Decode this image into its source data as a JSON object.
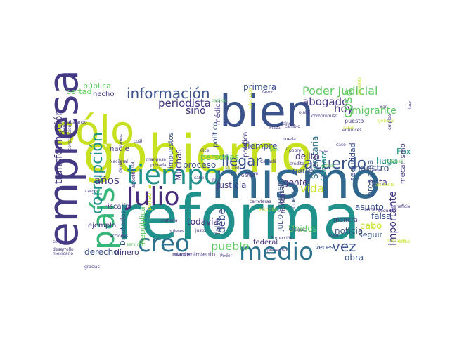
{
  "wordcloud": {
    "words": [
      {
        "text": "reforma",
        "color": "#21918c"
      },
      {
        "text": "gobierno",
        "color": "#c7e020"
      },
      {
        "text": "mismo",
        "color": "#31688e"
      },
      {
        "text": "bien",
        "color": "#3b528b"
      },
      {
        "text": "sólo",
        "color": "#c7e020"
      },
      {
        "text": "empresa",
        "color": "#443983"
      },
      {
        "text": "país",
        "color": "#35b779"
      },
      {
        "text": "tiempo",
        "color": "#21918c"
      },
      {
        "text": "Julio",
        "color": "#472d7b"
      },
      {
        "text": "creo",
        "color": "#2c728e"
      },
      {
        "text": "medio",
        "color": "#2c728e"
      },
      {
        "text": "acuerdo",
        "color": "#3b528b"
      },
      {
        "text": "información",
        "color": "#3b528b"
      },
      {
        "text": "Poder Judicial",
        "color": "#5ec962"
      },
      {
        "text": "periodista",
        "color": "#443983"
      },
      {
        "text": "corrupción",
        "color": "#21918c"
      },
      {
        "text": "años",
        "color": "#443983"
      },
      {
        "text": "pueblo",
        "color": "#5ec962"
      },
      {
        "text": "abogado",
        "color": "#443983"
      },
      {
        "text": "hoy",
        "color": "#443983"
      },
      {
        "text": "cosa",
        "color": "#5ec962"
      },
      {
        "text": "llegar",
        "color": "#3b528b"
      },
      {
        "text": "vez",
        "color": "#3b528b"
      },
      {
        "text": "importante",
        "color": "#443983"
      },
      {
        "text": "debe",
        "color": "#3b528b"
      },
      {
        "text": "Muchas",
        "color": "#443983"
      },
      {
        "text": "sino",
        "color": "#443983"
      },
      {
        "text": "migrante",
        "color": "#5ec962"
      },
      {
        "text": "Secretaría",
        "color": "#2c728e"
      },
      {
        "text": "seguridad",
        "color": "#3b528b"
      },
      {
        "text": "Cámara",
        "color": "#21918c"
      },
      {
        "text": "delito",
        "color": "#472d7b"
      },
      {
        "text": "gente",
        "color": "#472d7b"
      },
      {
        "text": "vida",
        "color": "#c7e020"
      },
      {
        "text": "maestro",
        "color": "#3b528b"
      },
      {
        "text": "justicia",
        "color": "#443983"
      },
      {
        "text": "todavía",
        "color": "#472d7b"
      },
      {
        "text": "personas",
        "color": "#5ec962"
      },
      {
        "text": "proceso",
        "color": "#3b528b"
      },
      {
        "text": "siempre",
        "color": "#3b528b"
      },
      {
        "text": "primera",
        "color": "#3b528b"
      },
      {
        "text": "ejemplo",
        "color": "#443983"
      },
      {
        "text": "hecho",
        "color": "#443983"
      },
      {
        "text": "derecho",
        "color": "#3b528b"
      },
      {
        "text": "dinero",
        "color": "#443983"
      },
      {
        "text": "falso",
        "color": "#3b528b"
      },
      {
        "text": "federal",
        "color": "#472d7b"
      },
      {
        "text": "noticia",
        "color": "#3b528b"
      },
      {
        "text": "obra",
        "color": "#3b528b"
      },
      {
        "text": "nota",
        "color": "#443983"
      },
      {
        "text": "falsa",
        "color": "#3b528b"
      },
      {
        "text": "asunto",
        "color": "#3b528b"
      },
      {
        "text": "trabajo",
        "color": "#3b528b"
      },
      {
        "text": "problema",
        "color": "#3b528b"
      },
      {
        "text": "haga",
        "color": "#21918c"
      },
      {
        "text": "Fox",
        "color": "#21918c"
      },
      {
        "text": "seguir",
        "color": "#3b528b"
      },
      {
        "text": "cabo",
        "color": "#c7e020"
      },
      {
        "text": "pública",
        "color": "#5ec962"
      },
      {
        "text": "libertad",
        "color": "#5ec962"
      },
      {
        "text": "transformación",
        "color": "#443983"
      },
      {
        "text": "impuestos",
        "color": "#3b528b"
      },
      {
        "text": "República",
        "color": "#5ec962"
      },
      {
        "text": "Diputados",
        "color": "#3b528b"
      },
      {
        "text": "político",
        "color": "#3b528b"
      },
      {
        "text": "política",
        "color": "#443983"
      },
      {
        "text": "médico",
        "color": "#443983"
      },
      {
        "text": "veces",
        "color": "#3b528b"
      },
      {
        "text": "Unidos",
        "color": "#5ec962"
      },
      {
        "text": "nadie",
        "color": "#443983"
      },
      {
        "text": "Fiscalía",
        "color": "#443983"
      },
      {
        "text": "JULIO SCHERER",
        "color": "#3b528b"
      },
      {
        "text": "cuenta",
        "color": "#3b528b"
      },
      {
        "text": "parte",
        "color": "#3b528b"
      },
      {
        "text": "mecanismo",
        "color": "#443983"
      },
      {
        "text": "puesto",
        "color": "#443983"
      },
      {
        "text": "nunca",
        "color": "#443983"
      },
      {
        "text": "manera",
        "color": "#443983"
      },
      {
        "text": "persona",
        "color": "#c7e020"
      },
      {
        "text": "mantenimiento",
        "color": "#443983"
      },
      {
        "text": "agosto",
        "color": "#443983"
      },
      {
        "text": "gracias",
        "color": "#443983"
      },
      {
        "text": "mañana",
        "color": "#443983"
      },
      {
        "text": "millones",
        "color": "#5ec962"
      },
      {
        "text": "crédito",
        "color": "#443983"
      },
      {
        "text": "Canadá",
        "color": "#443983"
      },
      {
        "text": "pobre",
        "color": "#443983"
      },
      {
        "text": "Nacional",
        "color": "#443983"
      },
      {
        "text": "privada",
        "color": "#443983"
      },
      {
        "text": "mariposa",
        "color": "#443983"
      },
      {
        "text": "adecuado",
        "color": "#c7e020"
      },
      {
        "text": "plan",
        "color": "#5ec962"
      },
      {
        "text": "sabe",
        "color": "#443983"
      },
      {
        "text": "dijo",
        "color": "#443983"
      },
      {
        "text": "favor",
        "color": "#443983"
      },
      {
        "text": "cambio",
        "color": "#443983"
      },
      {
        "text": "ir",
        "color": "#443983"
      },
      {
        "text": "cinco",
        "color": "#443983"
      },
      {
        "text": "ojalá",
        "color": "#443983"
      },
      {
        "text": "asistente",
        "color": "#c7e020"
      },
      {
        "text": "beneficio",
        "color": "#443983"
      },
      {
        "text": "segunda",
        "color": "#443983"
      },
      {
        "text": "semana",
        "color": "#443983"
      },
      {
        "text": "pasa",
        "color": "#443983"
      },
      {
        "text": "atender",
        "color": "#443983"
      },
      {
        "text": "Poder",
        "color": "#443983"
      },
      {
        "text": "desarrollo",
        "color": "#443983"
      },
      {
        "text": "mexicano",
        "color": "#443983"
      },
      {
        "text": "acciones",
        "color": "#443983"
      },
      {
        "text": "justo",
        "color": "#443983"
      },
      {
        "text": "quieres",
        "color": "#443983"
      },
      {
        "text": "servicio",
        "color": "#5ec962"
      },
      {
        "text": "cargo",
        "color": "#443983"
      },
      {
        "text": "ser",
        "color": "#443983"
      },
      {
        "text": "toda",
        "color": "#443983"
      },
      {
        "text": "García",
        "color": "#443983"
      },
      {
        "text": "Ancira",
        "color": "#443983"
      },
      {
        "text": "cabildo",
        "color": "#5ec962"
      },
      {
        "text": "estado",
        "color": "#5ec962"
      },
      {
        "text": "Plaza",
        "color": "#443983"
      },
      {
        "text": "Chiapas",
        "color": "#443983"
      },
      {
        "text": "llegó",
        "color": "#443983"
      },
      {
        "text": "trabajando",
        "color": "#443983"
      },
      {
        "text": "constitucional",
        "color": "#443983"
      },
      {
        "text": "presentar",
        "color": "#443983"
      },
      {
        "text": "Protección",
        "color": "#443983"
      },
      {
        "text": "carreteras",
        "color": "#443983"
      },
      {
        "text": "cuál",
        "color": "#443983"
      },
      {
        "text": "dice",
        "color": "#443983"
      },
      {
        "text": "general",
        "color": "#c7e020"
      },
      {
        "text": "empleo",
        "color": "#443983"
      },
      {
        "text": "entonces",
        "color": "#443983"
      },
      {
        "text": "compromiso",
        "color": "#443983"
      },
      {
        "text": "presente",
        "color": "#c7e020"
      },
      {
        "text": "Vamos",
        "color": "#443983"
      },
      {
        "text": "decían",
        "color": "#443983"
      },
      {
        "text": "avanzar",
        "color": "#443983"
      },
      {
        "text": "PRI",
        "color": "#443983"
      },
      {
        "text": "pueda",
        "color": "#443983"
      },
      {
        "text": "atención",
        "color": "#c7e020"
      },
      {
        "text": "tarde",
        "color": "#443983"
      },
      {
        "text": "leer",
        "color": "#443983"
      },
      {
        "text": "Bar",
        "color": "#443983"
      },
      {
        "text": "salud",
        "color": "#c7e020"
      },
      {
        "text": "humanos",
        "color": "#c7e020"
      },
      {
        "text": "usted",
        "color": "#c7e020"
      },
      {
        "text": "caso",
        "color": "#443983"
      },
      {
        "text": "pueden",
        "color": "#443983"
      },
      {
        "text": "nuevo",
        "color": "#c7e020"
      }
    ]
  }
}
